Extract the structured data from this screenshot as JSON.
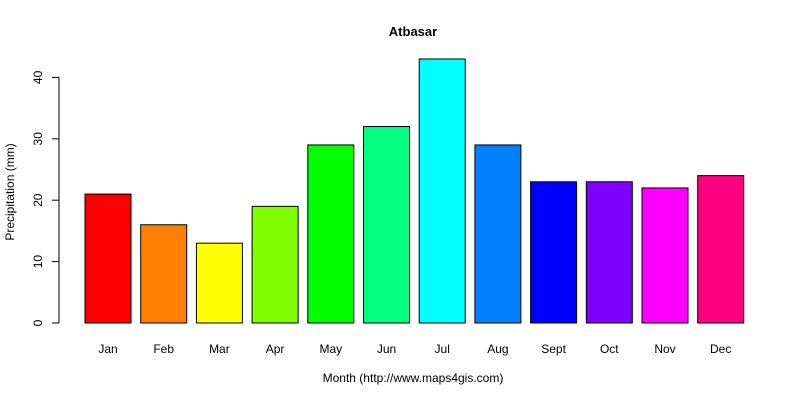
{
  "chart_data": {
    "type": "bar",
    "title": "Atbasar",
    "xlabel": "Month (http://www.maps4gis.com)",
    "ylabel": "Precipitation (mm)",
    "categories": [
      "Jan",
      "Feb",
      "Mar",
      "Apr",
      "May",
      "Jun",
      "Jul",
      "Aug",
      "Sept",
      "Oct",
      "Nov",
      "Dec"
    ],
    "values": [
      21,
      16,
      13,
      19,
      29,
      32,
      43,
      29,
      23,
      23,
      22,
      24
    ],
    "colors": [
      "#FF0000",
      "#FF8000",
      "#FFFF00",
      "#80FF00",
      "#00FF00",
      "#00FF80",
      "#00FFFF",
      "#0080FF",
      "#0000FF",
      "#8000FF",
      "#FF00FF",
      "#FF0080"
    ],
    "ylim": [
      0,
      43
    ],
    "yticks": [
      0,
      10,
      20,
      30,
      40
    ],
    "grid": false,
    "legend": "none"
  }
}
